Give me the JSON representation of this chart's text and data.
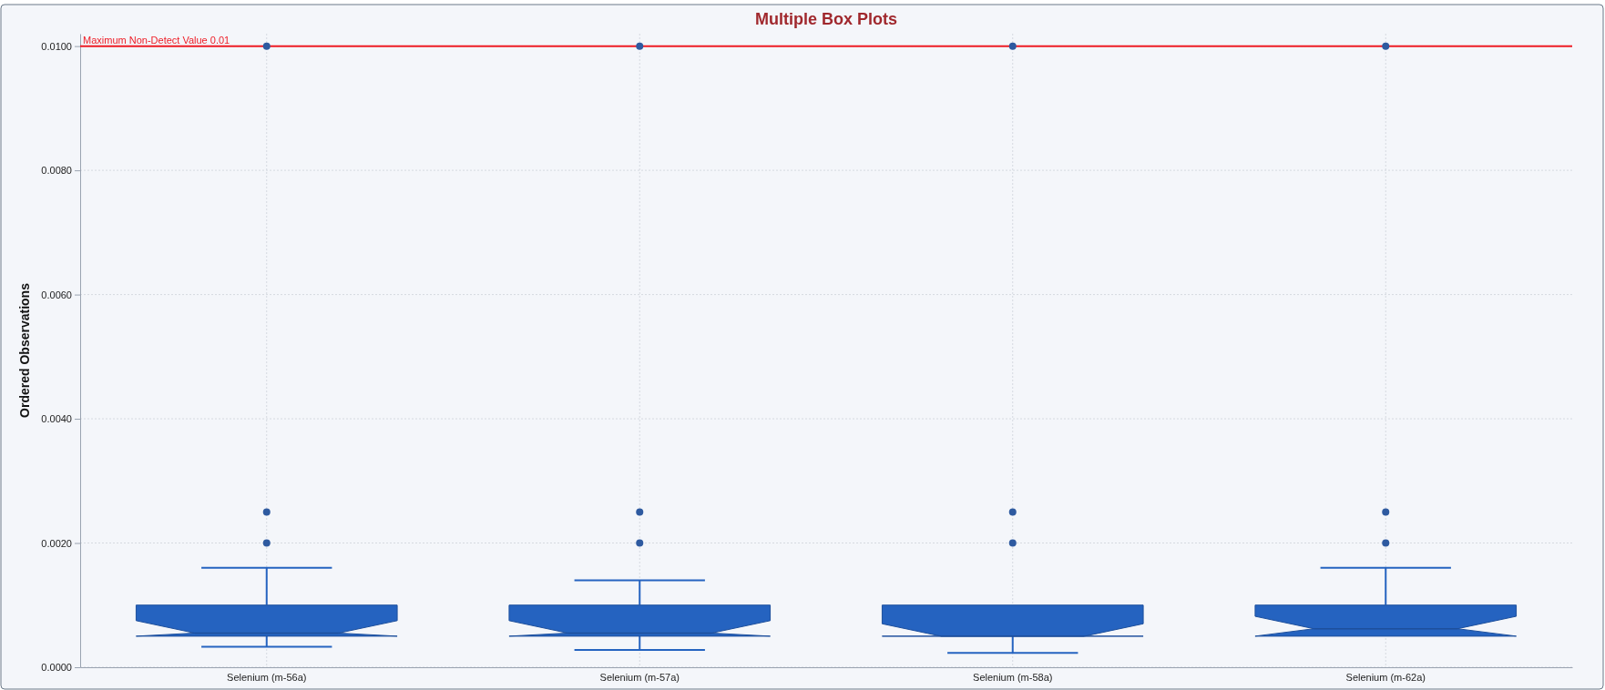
{
  "chart_data": {
    "type": "box",
    "title": "Multiple Box Plots",
    "ylabel": "Ordered Observations",
    "categories": [
      "Selenium (m-56a)",
      "Selenium (m-57a)",
      "Selenium (m-58a)",
      "Selenium (m-62a)"
    ],
    "boxes": [
      {
        "low": 0.00033,
        "q1": 0.0005,
        "median": 0.00055,
        "q3": 0.001,
        "high": 0.0016,
        "outliers": [
          0.002,
          0.0025,
          0.01
        ]
      },
      {
        "low": 0.00028,
        "q1": 0.0005,
        "median": 0.00055,
        "q3": 0.001,
        "high": 0.0014,
        "outliers": [
          0.002,
          0.0025,
          0.01
        ]
      },
      {
        "low": 0.00023,
        "q1": 0.0005,
        "median": 0.0005,
        "q3": 0.001,
        "high": 0.001,
        "outliers": [
          0.002,
          0.0025,
          0.01
        ]
      },
      {
        "low": 0.0005,
        "q1": 0.0005,
        "median": 0.00062,
        "q3": 0.001,
        "high": 0.0016,
        "outliers": [
          0.002,
          0.0025,
          0.01
        ]
      }
    ],
    "color": "#2563c0",
    "ylim": [
      0,
      0.0102
    ],
    "yticks": [
      {
        "value": 0,
        "label": "0.0000"
      },
      {
        "value": 0.002,
        "label": "0.0020"
      },
      {
        "value": 0.004,
        "label": "0.0040"
      },
      {
        "value": 0.006,
        "label": "0.0060"
      },
      {
        "value": 0.008,
        "label": "0.0080"
      },
      {
        "value": 0.01,
        "label": "0.0100"
      }
    ],
    "grid": true,
    "ref_lines": [
      {
        "axis": "y",
        "value": 0.01,
        "label": "Maximum Non-Detect Value 0.01",
        "color": "#ee1c25"
      }
    ]
  }
}
